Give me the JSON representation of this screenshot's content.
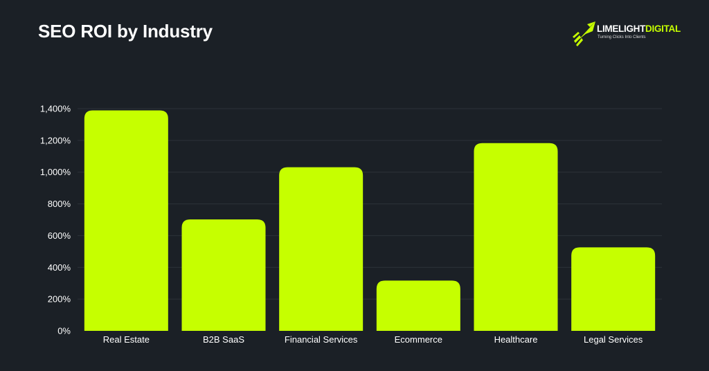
{
  "logo": {
    "name_part1": "LIMELIGHT",
    "name_part2": "DIGITAL",
    "tagline": "Turning Clicks Into Clients",
    "accent_color": "#c6ff00"
  },
  "chart_data": {
    "type": "bar",
    "title": "SEO ROI by Industry",
    "categories": [
      "Real Estate",
      "B2B SaaS",
      "Financial Services",
      "Ecommerce",
      "Healthcare",
      "Legal Services"
    ],
    "values": [
      1389,
      702,
      1031,
      317,
      1183,
      526
    ],
    "ylim": [
      0,
      1400
    ],
    "yticks": [
      0,
      200,
      400,
      600,
      800,
      1000,
      1200,
      1400
    ],
    "ytick_labels": [
      "0%",
      "200%",
      "400%",
      "600%",
      "800%",
      "1,000%",
      "1,200%",
      "1,400%"
    ],
    "xlabel": "",
    "ylabel": "",
    "grid": true,
    "bar_color": "#c6ff00",
    "background_color": "#1b2026",
    "grid_color": "#2c3239"
  }
}
